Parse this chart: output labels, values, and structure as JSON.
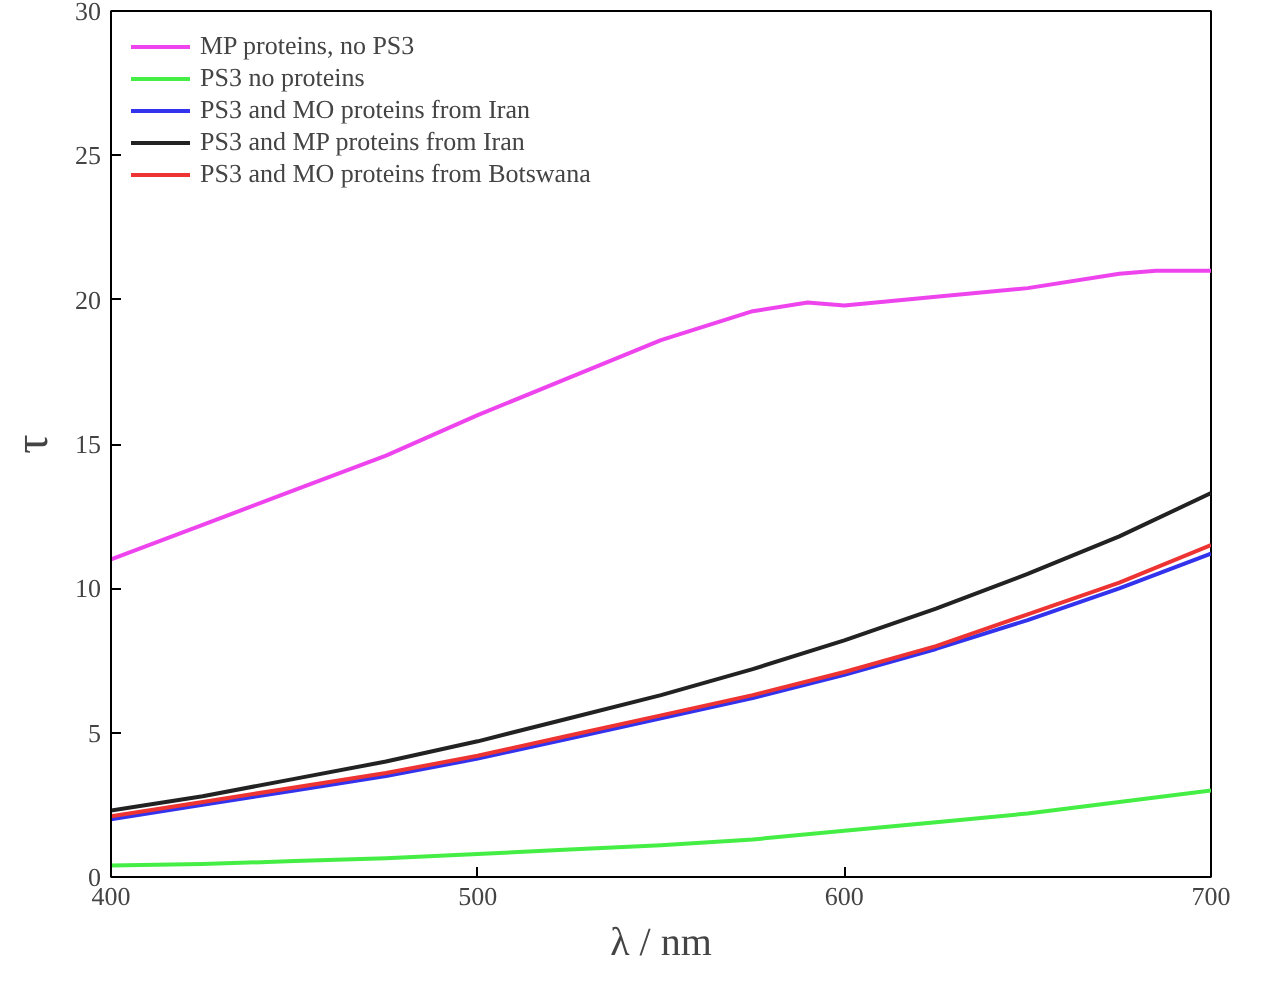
{
  "chart_data": {
    "type": "line",
    "xlabel": "λ / nm",
    "ylabel": "τ",
    "xlim": [
      400,
      700
    ],
    "ylim": [
      0,
      30
    ],
    "xticks": [
      400,
      500,
      600,
      700
    ],
    "yticks": [
      0,
      5,
      10,
      15,
      20,
      25,
      30
    ],
    "grid": false,
    "legend": "top left",
    "line_style": "solid",
    "marker": "none",
    "series": [
      {
        "name": "MP proteins, no PS3",
        "color": "#ee44ee",
        "x": [
          400,
          425,
          450,
          475,
          500,
          525,
          550,
          575,
          590,
          600,
          625,
          650,
          675,
          685,
          700
        ],
        "values": [
          11.0,
          12.2,
          13.4,
          14.6,
          16.0,
          17.3,
          18.6,
          19.6,
          19.9,
          19.8,
          20.1,
          20.4,
          20.9,
          21.0,
          21.0
        ]
      },
      {
        "name": "PS3 no proteins",
        "color": "#44ee44",
        "x": [
          400,
          425,
          450,
          475,
          500,
          525,
          550,
          575,
          600,
          625,
          650,
          675,
          700
        ],
        "values": [
          0.4,
          0.45,
          0.55,
          0.65,
          0.8,
          0.95,
          1.1,
          1.3,
          1.6,
          1.9,
          2.2,
          2.6,
          3.0
        ]
      },
      {
        "name": "PS3 and MO proteins from Iran",
        "color": "#3333ee",
        "x": [
          400,
          425,
          450,
          475,
          500,
          525,
          550,
          575,
          600,
          625,
          650,
          675,
          700
        ],
        "values": [
          2.0,
          2.5,
          3.0,
          3.5,
          4.1,
          4.8,
          5.5,
          6.2,
          7.0,
          7.9,
          8.9,
          10.0,
          11.2
        ]
      },
      {
        "name": "PS3 and MP proteins from Iran",
        "color": "#222222",
        "x": [
          400,
          425,
          450,
          475,
          500,
          525,
          550,
          575,
          600,
          625,
          650,
          675,
          700
        ],
        "values": [
          2.3,
          2.8,
          3.4,
          4.0,
          4.7,
          5.5,
          6.3,
          7.2,
          8.2,
          9.3,
          10.5,
          11.8,
          13.3
        ]
      },
      {
        "name": "PS3 and MO proteins from Botswana",
        "color": "#ee3333",
        "x": [
          400,
          425,
          450,
          475,
          500,
          525,
          550,
          575,
          600,
          625,
          650,
          675,
          700
        ],
        "values": [
          2.1,
          2.6,
          3.1,
          3.6,
          4.2,
          4.9,
          5.6,
          6.3,
          7.1,
          8.0,
          9.1,
          10.2,
          11.5
        ]
      }
    ]
  }
}
